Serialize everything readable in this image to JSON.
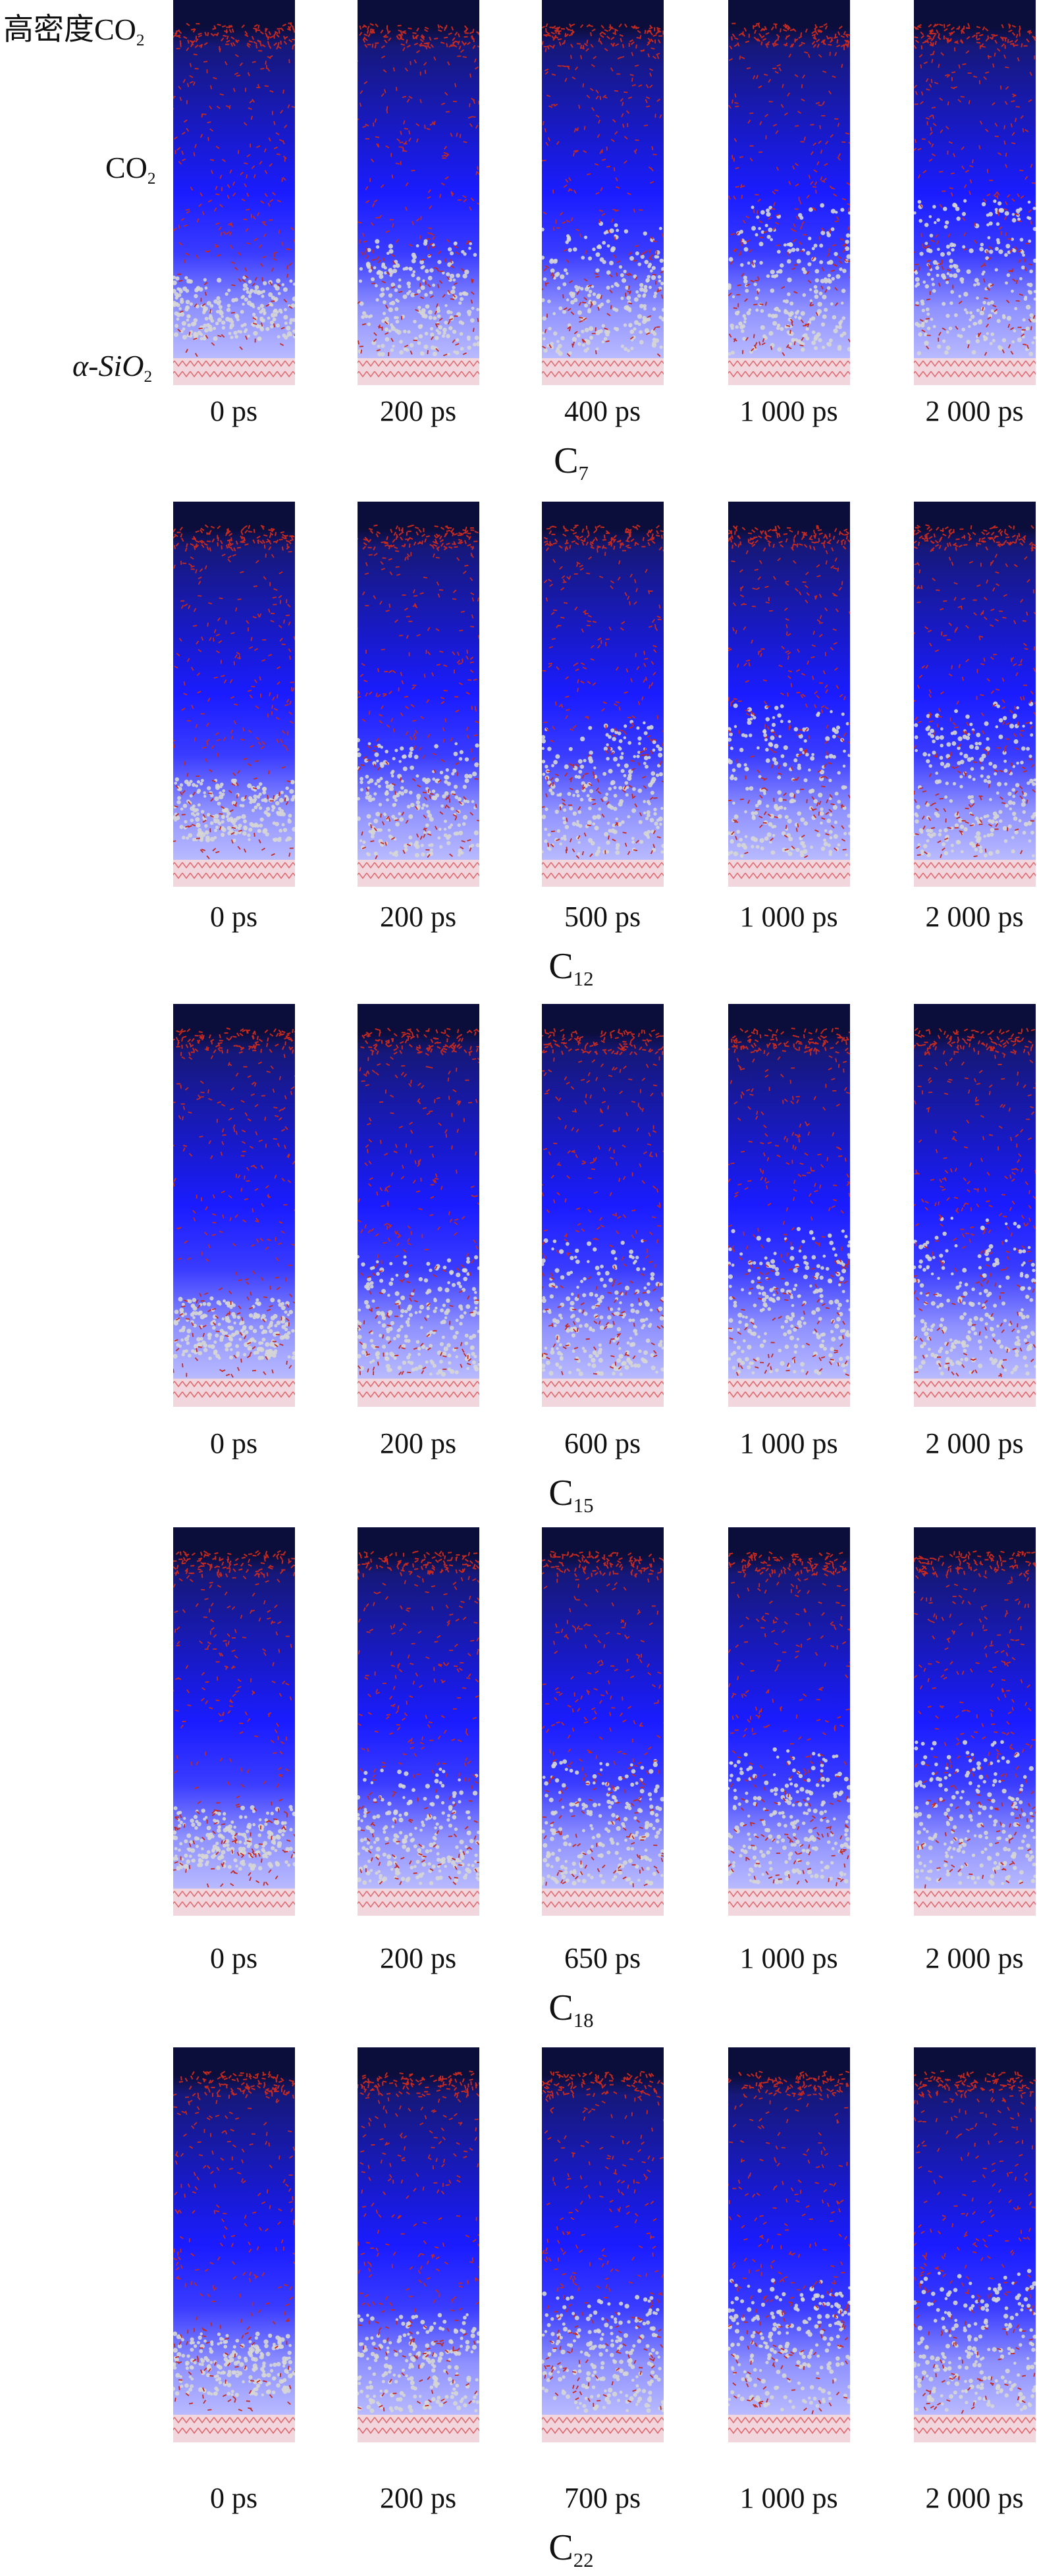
{
  "side_labels": {
    "dense_co2": "高密度CO",
    "dense_co2_sub": "2",
    "co2": "CO",
    "co2_sub": "2",
    "silica_alpha": "α-SiO",
    "silica_sub": "2"
  },
  "rows": [
    {
      "series_main": "C",
      "series_sub": "7",
      "times": [
        "0 ps",
        "200 ps",
        "400 ps",
        "1 000 ps",
        "2 000 ps"
      ]
    },
    {
      "series_main": "C",
      "series_sub": "12",
      "times": [
        "0 ps",
        "200 ps",
        "500 ps",
        "1 000 ps",
        "2 000 ps"
      ]
    },
    {
      "series_main": "C",
      "series_sub": "15",
      "times": [
        "0 ps",
        "200 ps",
        "600 ps",
        "1 000 ps",
        "2 000 ps"
      ]
    },
    {
      "series_main": "C",
      "series_sub": "18",
      "times": [
        "0 ps",
        "200 ps",
        "650 ps",
        "1 000 ps",
        "2 000 ps"
      ]
    },
    {
      "series_main": "C",
      "series_sub": "22",
      "times": [
        "0 ps",
        "200 ps",
        "700 ps",
        "1 000 ps",
        "2 000 ps"
      ]
    }
  ],
  "colors": {
    "co2_molecule": "#c42a1f",
    "hydrocarbon": "#d6d6d6",
    "silica": "#e06a70",
    "background_top": "#0b0d3a",
    "background_mid": "#1a1cff"
  }
}
